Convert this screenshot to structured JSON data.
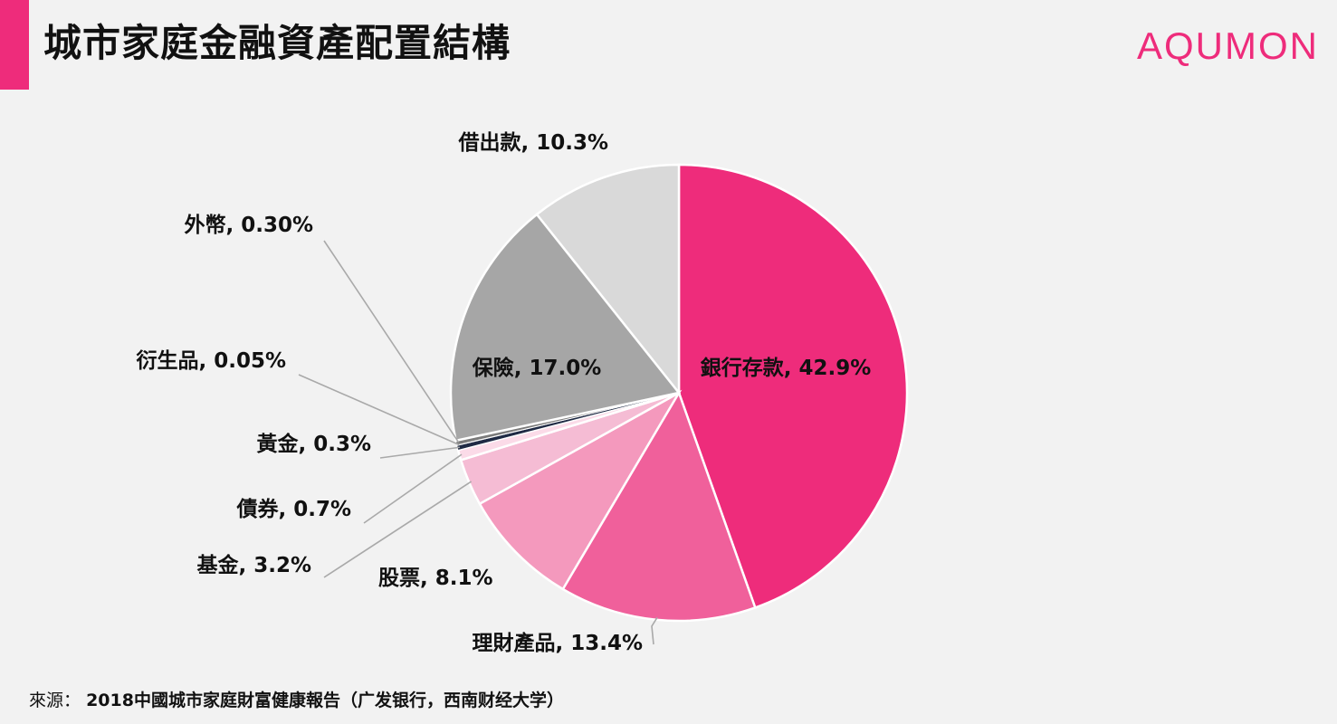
{
  "header": {
    "title": "城市家庭金融資產配置結構",
    "brand": "AQUMON",
    "accent_color": "#ee2c7b"
  },
  "footer": {
    "source_label": "來源：",
    "source_text": "2018中國城市家庭財富健康報告（广发银行，西南财经大学）"
  },
  "chart_data": {
    "type": "pie",
    "slices": [
      {
        "name": "銀行存款",
        "value": 42.9,
        "label": "銀行存款, 42.9%",
        "color": "#ee2c7b",
        "label_position": "inside"
      },
      {
        "name": "理財產品",
        "value": 13.4,
        "label": "理財產品, 13.4%",
        "color": "#f0609b",
        "label_position": "outside"
      },
      {
        "name": "股票",
        "value": 8.1,
        "label": "股票, 8.1%",
        "color": "#f499bd",
        "label_position": "outside"
      },
      {
        "name": "基金",
        "value": 3.2,
        "label": "基金, 3.2%",
        "color": "#f5bcd4",
        "label_position": "outside"
      },
      {
        "name": "債券",
        "value": 0.7,
        "label": "債券, 0.7%",
        "color": "#fbdbe8",
        "label_position": "outside"
      },
      {
        "name": "黃金",
        "value": 0.3,
        "label": "黃金, 0.3%",
        "color": "#1f2a44",
        "label_position": "outside"
      },
      {
        "name": "衍生品",
        "value": 0.05,
        "label": "衍生品, 0.05%",
        "color": "#555555",
        "label_position": "outside"
      },
      {
        "name": "外幣",
        "value": 0.3,
        "label": "外幣, 0.30%",
        "color": "#7a7a7a",
        "label_position": "outside"
      },
      {
        "name": "保險",
        "value": 17.0,
        "label": "保險, 17.0%",
        "color": "#a6a6a6",
        "label_position": "inside"
      },
      {
        "name": "借出款",
        "value": 10.3,
        "label": "借出款, 10.3%",
        "color": "#d9d9d9",
        "label_position": "outside"
      }
    ]
  }
}
